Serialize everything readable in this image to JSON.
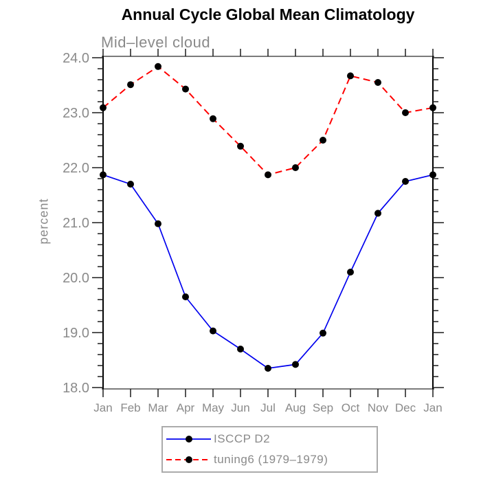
{
  "title": "Annual Cycle Global Mean Climatology",
  "subtitle": "Mid–level cloud",
  "ylabel": "percent",
  "colors": {
    "title_text": "#000000",
    "label_text": "#8a8a8a",
    "axis_vertical": "#000000",
    "axis_horizontal": "#7a7a7a",
    "tick": "#1a1a1a",
    "marker": "#000000",
    "series1": "#0000ee",
    "series2": "#ff0000",
    "legend_border": "#ababab"
  },
  "chart_data": {
    "type": "line",
    "title": "Annual Cycle Global Mean Climatology",
    "subtitle": "Mid–level cloud",
    "xlabel": "",
    "ylabel": "percent",
    "categories": [
      "Jan",
      "Feb",
      "Mar",
      "Apr",
      "May",
      "Jun",
      "Jul",
      "Aug",
      "Sep",
      "Oct",
      "Nov",
      "Dec",
      "Jan"
    ],
    "ylim": [
      18.0,
      24.0
    ],
    "ytick_major_step": 1.0,
    "ytick_minor_step": 0.2,
    "ytick_labels": [
      "18.0",
      "19.0",
      "20.0",
      "21.0",
      "22.0",
      "23.0",
      "24.0"
    ],
    "grid": false,
    "legend_position": "bottom-center",
    "series": [
      {
        "name": "ISCCP D2",
        "line_style": "solid",
        "color": "#0000ee",
        "marker": "filled-circle",
        "values": [
          21.87,
          21.7,
          20.98,
          19.65,
          19.03,
          18.7,
          18.35,
          18.42,
          18.99,
          20.1,
          21.17,
          21.75,
          21.87
        ]
      },
      {
        "name": "tuning6 (1979–1979)",
        "line_style": "dashed",
        "color": "#ff0000",
        "marker": "filled-circle",
        "values": [
          23.09,
          23.51,
          23.84,
          23.43,
          22.89,
          22.39,
          21.87,
          22.0,
          22.5,
          23.67,
          23.55,
          23.0,
          23.09
        ]
      }
    ]
  },
  "legend": {
    "items": [
      {
        "label": "ISCCP D2"
      },
      {
        "label": "tuning6 (1979–1979)"
      }
    ]
  }
}
